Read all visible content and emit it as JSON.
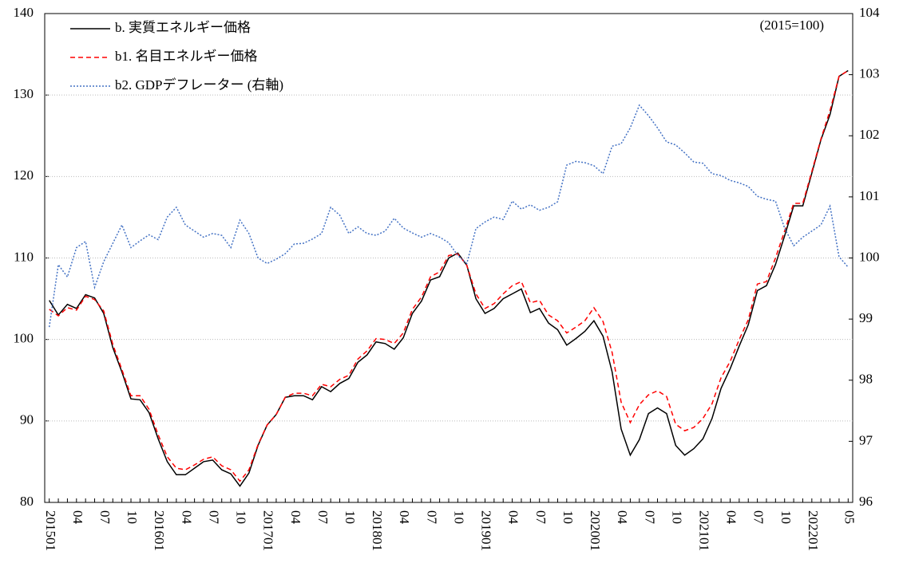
{
  "chart_data": {
    "type": "line",
    "annotation": "(2015=100)",
    "categories": [
      "201501",
      null,
      null,
      "04",
      null,
      null,
      "07",
      null,
      null,
      "10",
      null,
      null,
      "201601",
      null,
      null,
      "04",
      null,
      null,
      "07",
      null,
      null,
      "10",
      null,
      null,
      "201701",
      null,
      null,
      "04",
      null,
      null,
      "07",
      null,
      null,
      "10",
      null,
      null,
      "201801",
      null,
      null,
      "04",
      null,
      null,
      "07",
      null,
      null,
      "10",
      null,
      null,
      "201901",
      null,
      null,
      "04",
      null,
      null,
      "07",
      null,
      null,
      "10",
      null,
      null,
      "202001",
      null,
      null,
      "04",
      null,
      null,
      "07",
      null,
      null,
      "10",
      null,
      null,
      "202101",
      null,
      null,
      "04",
      null,
      null,
      "07",
      null,
      null,
      "10",
      null,
      null,
      "202201",
      null,
      null,
      null,
      "05"
    ],
    "series": [
      {
        "name": "b. 実質エネルギー価格",
        "color": "#000000",
        "dash": "solid",
        "axis": "y",
        "values": [
          104.8,
          103,
          104.3,
          103.8,
          105.5,
          105.1,
          103.2,
          99,
          96,
          92.7,
          92.6,
          91,
          87.8,
          85,
          83.4,
          83.4,
          84.2,
          85,
          85.2,
          84,
          83.5,
          82,
          83.6,
          87,
          89.5,
          90.8,
          92.9,
          93.1,
          93.1,
          92.6,
          94.2,
          93.6,
          94.6,
          95.2,
          97.2,
          98.1,
          99.7,
          99.5,
          98.8,
          100.2,
          103.2,
          104.7,
          107.3,
          107.7,
          110,
          110.6,
          109.1,
          105,
          103.2,
          103.8,
          105,
          105.6,
          106.2,
          103.3,
          103.8,
          102,
          101.2,
          99.3,
          100.1,
          101,
          102.3,
          100.4,
          96,
          89,
          85.8,
          87.7,
          90.9,
          91.6,
          90.9,
          87,
          85.8,
          86.6,
          87.8,
          90.3,
          94,
          96.4,
          99.2,
          101.8,
          106,
          106.6,
          109.2,
          112.7,
          116.4,
          116.4,
          120.4,
          124.5,
          127.6,
          132.3,
          133
        ]
      },
      {
        "name": "b1. 名目エネルギー価格",
        "color": "#ff0000",
        "dash": "dashed",
        "axis": "y",
        "values": [
          103.7,
          102.9,
          103.9,
          103.6,
          105.3,
          104.9,
          103.5,
          99.4,
          96.3,
          93.1,
          93.1,
          91.4,
          88.3,
          85.6,
          84.2,
          84,
          84.6,
          85.3,
          85.6,
          84.5,
          84,
          82.6,
          84,
          87.1,
          89.5,
          90.8,
          92.9,
          93.4,
          93.4,
          93.1,
          94.5,
          94.2,
          95.1,
          95.6,
          97.6,
          98.6,
          100.1,
          100,
          99.5,
          100.8,
          103.7,
          105.2,
          107.7,
          108.3,
          110.3,
          110.5,
          109.1,
          105.6,
          103.8,
          104.4,
          105.6,
          106.6,
          107.1,
          104.5,
          104.8,
          103,
          102.3,
          100.8,
          101.5,
          102.3,
          103.9,
          102.2,
          98.4,
          92.3,
          89.8,
          92,
          93.2,
          93.7,
          93,
          89.6,
          88.8,
          89.2,
          90.3,
          92.1,
          95.3,
          97.3,
          100,
          102.4,
          106.8,
          107.1,
          110,
          113.3,
          116.7,
          116.7,
          120.6,
          124.6,
          128.1,
          132.3,
          133
        ]
      },
      {
        "name": "b2. GDPデフレーター (右軸)",
        "color": "#4472c4",
        "dash": "dotted",
        "axis": "y2",
        "values": [
          98.87,
          99.89,
          99.69,
          100.17,
          100.27,
          99.52,
          99.94,
          100.24,
          100.54,
          100.17,
          100.28,
          100.38,
          100.3,
          100.67,
          100.83,
          100.54,
          100.44,
          100.34,
          100.4,
          100.37,
          100.17,
          100.62,
          100.4,
          100.0,
          99.91,
          99.98,
          100.07,
          100.23,
          100.24,
          100.31,
          100.4,
          100.83,
          100.7,
          100.4,
          100.51,
          100.4,
          100.37,
          100.44,
          100.65,
          100.49,
          100.41,
          100.34,
          100.4,
          100.34,
          100.25,
          100.04,
          99.91,
          100.48,
          100.59,
          100.67,
          100.63,
          100.93,
          100.8,
          100.87,
          100.78,
          100.83,
          100.92,
          101.52,
          101.58,
          101.56,
          101.51,
          101.38,
          101.83,
          101.87,
          102.13,
          102.5,
          102.33,
          102.13,
          101.9,
          101.85,
          101.72,
          101.57,
          101.55,
          101.38,
          101.35,
          101.27,
          101.23,
          101.17,
          101.01,
          100.96,
          100.93,
          100.49,
          100.2,
          100.34,
          100.44,
          100.54,
          100.85,
          100.02,
          99.85
        ]
      }
    ],
    "ylim": [
      80,
      140
    ],
    "yticks": [
      80,
      90,
      100,
      110,
      120,
      130,
      140
    ],
    "y2lim": [
      96,
      104
    ],
    "y2ticks": [
      96,
      97,
      98,
      99,
      100,
      101,
      102,
      103,
      104
    ],
    "grid": true,
    "legend": "top-left"
  }
}
